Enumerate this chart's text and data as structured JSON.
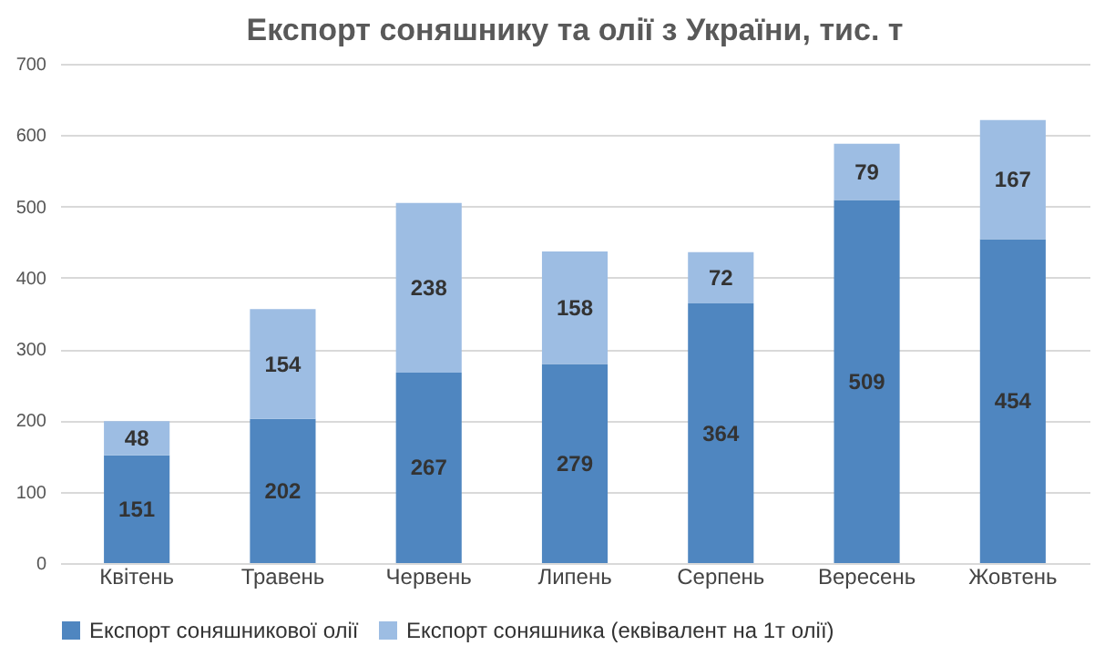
{
  "chart_data": {
    "type": "bar",
    "title": "Експорт соняшнику та олії з України, тис. т",
    "categories": [
      "Квітень",
      "Травень",
      "Червень",
      "Липень",
      "Серпень",
      "Вересень",
      "Жовтень"
    ],
    "series": [
      {
        "name": "Експорт соняшникової олії",
        "color": "#4f86c0",
        "values": [
          151,
          202,
          267,
          279,
          364,
          509,
          454
        ]
      },
      {
        "name": "Експорт соняшника (еквівалент на 1т олії)",
        "color": "#9dbde3",
        "values": [
          48,
          154,
          238,
          158,
          72,
          79,
          167
        ]
      }
    ],
    "stacked": true,
    "data_labels": true,
    "ylim": [
      0,
      700
    ],
    "yticks": [
      0,
      100,
      200,
      300,
      400,
      500,
      600,
      700
    ],
    "grid": "y",
    "legend": "bottom"
  }
}
